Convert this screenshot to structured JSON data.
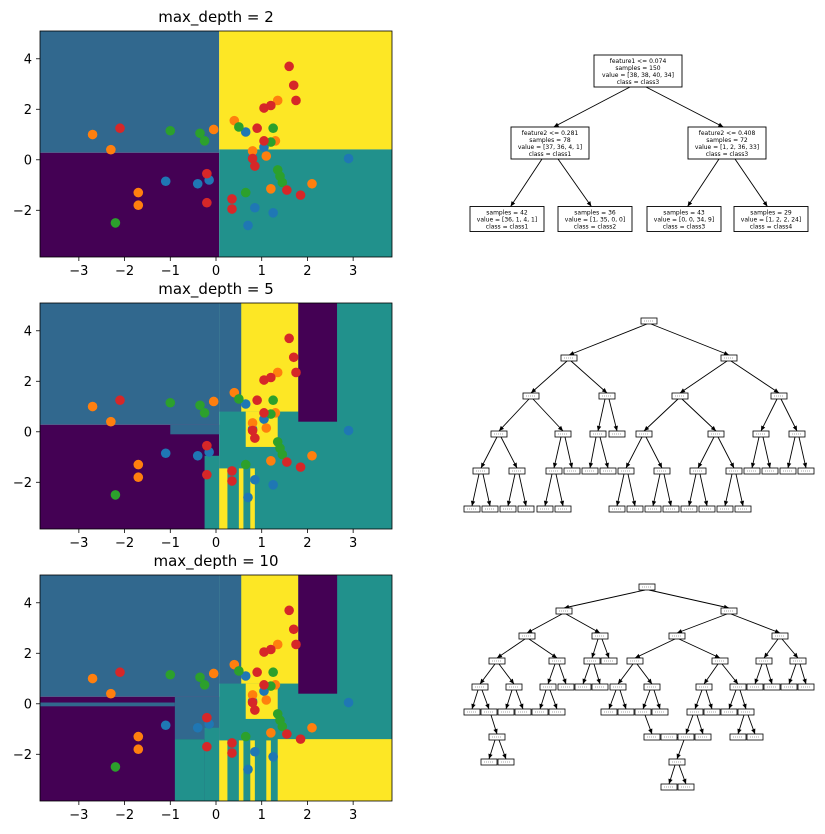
{
  "colors": {
    "region_class1": "#440154",
    "region_class2": "#31688e",
    "region_class3": "#21918c",
    "region_class4": "#fde725",
    "points": [
      "#1f77b4",
      "#ff7f0e",
      "#2ca02c",
      "#d62728"
    ]
  },
  "points": [
    {
      "x": 2.9,
      "y": 0.05,
      "c": 0
    },
    {
      "x": -1.1,
      "y": -0.85,
      "c": 0
    },
    {
      "x": -0.4,
      "y": -0.95,
      "c": 0
    },
    {
      "x": -0.15,
      "y": -0.8,
      "c": 0
    },
    {
      "x": 0.85,
      "y": -1.9,
      "c": 0
    },
    {
      "x": 0.7,
      "y": -2.6,
      "c": 0
    },
    {
      "x": 1.25,
      "y": -2.1,
      "c": 0
    },
    {
      "x": 0.65,
      "y": 1.1,
      "c": 0
    },
    {
      "x": 1.05,
      "y": 0.5,
      "c": 0
    },
    {
      "x": 0.8,
      "y": 0.1,
      "c": 0
    },
    {
      "x": -2.7,
      "y": 1.0,
      "c": 1
    },
    {
      "x": -2.3,
      "y": 0.4,
      "c": 1
    },
    {
      "x": -1.7,
      "y": -1.3,
      "c": 1
    },
    {
      "x": -1.7,
      "y": -1.8,
      "c": 1
    },
    {
      "x": -0.05,
      "y": 1.2,
      "c": 1
    },
    {
      "x": 0.4,
      "y": 1.55,
      "c": 1
    },
    {
      "x": 1.35,
      "y": 2.35,
      "c": 1
    },
    {
      "x": 1.3,
      "y": 0.75,
      "c": 1
    },
    {
      "x": 1.1,
      "y": 0.15,
      "c": 1
    },
    {
      "x": 1.2,
      "y": -1.15,
      "c": 1
    },
    {
      "x": 2.1,
      "y": -0.95,
      "c": 1
    },
    {
      "x": 0.8,
      "y": 0.35,
      "c": 1
    },
    {
      "x": -2.2,
      "y": -2.5,
      "c": 2
    },
    {
      "x": -1.0,
      "y": 1.15,
      "c": 2
    },
    {
      "x": -0.35,
      "y": 1.05,
      "c": 2
    },
    {
      "x": -0.25,
      "y": 0.75,
      "c": 2
    },
    {
      "x": 0.5,
      "y": 1.3,
      "c": 2
    },
    {
      "x": 0.65,
      "y": -1.3,
      "c": 2
    },
    {
      "x": 1.25,
      "y": 1.25,
      "c": 2
    },
    {
      "x": 1.35,
      "y": -0.4,
      "c": 2
    },
    {
      "x": 1.4,
      "y": -0.65,
      "c": 2
    },
    {
      "x": 1.45,
      "y": -0.9,
      "c": 2
    },
    {
      "x": 1.2,
      "y": 0.7,
      "c": 2
    },
    {
      "x": 1.6,
      "y": 3.7,
      "c": 3
    },
    {
      "x": 1.7,
      "y": 2.95,
      "c": 3
    },
    {
      "x": 1.75,
      "y": 2.35,
      "c": 3
    },
    {
      "x": 1.05,
      "y": 2.05,
      "c": 3
    },
    {
      "x": 1.2,
      "y": 2.15,
      "c": 3
    },
    {
      "x": -2.1,
      "y": 1.25,
      "c": 3
    },
    {
      "x": 0.9,
      "y": 1.25,
      "c": 3
    },
    {
      "x": 0.8,
      "y": 0.05,
      "c": 3
    },
    {
      "x": 0.85,
      "y": -0.25,
      "c": 3
    },
    {
      "x": 1.05,
      "y": 0.75,
      "c": 3
    },
    {
      "x": -0.2,
      "y": -0.55,
      "c": 3
    },
    {
      "x": -0.2,
      "y": -1.7,
      "c": 3
    },
    {
      "x": 0.35,
      "y": -1.55,
      "c": 3
    },
    {
      "x": 0.35,
      "y": -1.95,
      "c": 3
    },
    {
      "x": 1.55,
      "y": -1.2,
      "c": 3
    },
    {
      "x": 1.85,
      "y": -1.4,
      "c": 3
    }
  ],
  "xticks": [
    "−3",
    "−2",
    "−1",
    "0",
    "1",
    "2",
    "3"
  ],
  "yticks": [
    "4",
    "2",
    "0",
    "−2"
  ],
  "panels": [
    {
      "title": "max_depth = 2",
      "chart_data": {
        "type": "heatmap",
        "xlim": [
          -3.85,
          3.85
        ],
        "ylim": [
          -3.85,
          5.1
        ],
        "regions": [
          {
            "x0": -3.85,
            "x1": 0.07,
            "y0": 0.28,
            "y1": 5.1,
            "c": 1
          },
          {
            "x0": -3.85,
            "x1": 0.07,
            "y0": -3.85,
            "y1": 0.28,
            "c": 0
          },
          {
            "x0": 0.07,
            "x1": 3.85,
            "y0": 0.41,
            "y1": 5.1,
            "c": 3
          },
          {
            "x0": 0.07,
            "x1": 3.85,
            "y0": -3.85,
            "y1": 0.41,
            "c": 2
          }
        ]
      },
      "tree": {
        "root": {
          "lines": [
            "feature1 <= 0.074",
            "samples = 150",
            "value = [38, 38, 40, 34]",
            "class = class3"
          ],
          "left": {
            "lines": [
              "feature2 <= 0.281",
              "samples = 78",
              "value = [37, 36, 4, 1]",
              "class = class1"
            ],
            "left": {
              "lines": [
                "samples = 42",
                "value = [36, 1, 4, 1]",
                "class = class1"
              ]
            },
            "right": {
              "lines": [
                "samples = 36",
                "value = [1, 35, 0, 0]",
                "class = class2"
              ]
            }
          },
          "right": {
            "lines": [
              "feature2 <= 0.408",
              "samples = 72",
              "value = [1, 2, 36, 33]",
              "class = class3"
            ],
            "left": {
              "lines": [
                "samples = 43",
                "value = [0, 0, 34, 9]",
                "class = class3"
              ]
            },
            "right": {
              "lines": [
                "samples = 29",
                "value = [1, 2, 2, 24]",
                "class = class4"
              ]
            }
          }
        }
      }
    },
    {
      "title": "max_depth = 5",
      "chart_data": {
        "type": "heatmap",
        "xlim": [
          -3.85,
          3.85
        ],
        "ylim": [
          -3.85,
          5.1
        ],
        "regions": [
          {
            "x0": -3.85,
            "x1": 0.07,
            "y0": 0.28,
            "y1": 5.1,
            "c": 1
          },
          {
            "x0": -3.85,
            "x1": 0.07,
            "y0": -3.85,
            "y1": 0.28,
            "c": 0
          },
          {
            "x0": -1.0,
            "x1": 0.07,
            "y0": -0.1,
            "y1": 0.28,
            "c": 1
          },
          {
            "x0": -0.25,
            "x1": 0.07,
            "y0": -3.85,
            "y1": -0.95,
            "c": 2
          },
          {
            "x0": 0.07,
            "x1": 3.85,
            "y0": -3.85,
            "y1": 5.1,
            "c": 2
          },
          {
            "x0": 0.55,
            "x1": 1.8,
            "y0": 0.8,
            "y1": 5.1,
            "c": 3
          },
          {
            "x0": 0.65,
            "x1": 1.35,
            "y0": -0.6,
            "y1": 0.8,
            "c": 3
          },
          {
            "x0": 1.8,
            "x1": 2.65,
            "y0": 0.4,
            "y1": 5.1,
            "c": 0
          },
          {
            "x0": 2.65,
            "x1": 3.85,
            "y0": 0.4,
            "y1": 5.1,
            "c": 2
          },
          {
            "x0": 0.07,
            "x1": 0.55,
            "y0": 0.8,
            "y1": 5.1,
            "c": 1
          },
          {
            "x0": 0.07,
            "x1": 0.25,
            "y0": -3.85,
            "y1": -1.45,
            "c": 3
          },
          {
            "x0": 0.5,
            "x1": 0.6,
            "y0": -3.85,
            "y1": -1.45,
            "c": 3
          },
          {
            "x0": 0.75,
            "x1": 0.85,
            "y0": -3.85,
            "y1": -1.45,
            "c": 3
          }
        ]
      },
      "tree": {
        "levels": [
          1,
          2,
          4,
          7,
          12,
          12
        ],
        "depth": 5
      }
    },
    {
      "title": "max_depth = 10",
      "chart_data": {
        "type": "heatmap",
        "xlim": [
          -3.85,
          3.85
        ],
        "ylim": [
          -3.85,
          5.1
        ],
        "regions": [
          {
            "x0": -3.85,
            "x1": 0.07,
            "y0": 0.28,
            "y1": 5.1,
            "c": 1
          },
          {
            "x0": -3.85,
            "x1": 0.07,
            "y0": -3.85,
            "y1": 0.28,
            "c": 0
          },
          {
            "x0": -3.85,
            "x1": -0.9,
            "y0": -0.1,
            "y1": 0.05,
            "c": 1
          },
          {
            "x0": -0.9,
            "x1": 0.07,
            "y0": -1.4,
            "y1": 0.28,
            "c": 1
          },
          {
            "x0": -0.9,
            "x1": -0.25,
            "y0": -3.85,
            "y1": -1.4,
            "c": 2
          },
          {
            "x0": -0.25,
            "x1": 0.07,
            "y0": -3.85,
            "y1": -0.95,
            "c": 2
          },
          {
            "x0": 0.07,
            "x1": 3.85,
            "y0": -3.85,
            "y1": 5.1,
            "c": 2
          },
          {
            "x0": 0.55,
            "x1": 1.8,
            "y0": 0.8,
            "y1": 5.1,
            "c": 3
          },
          {
            "x0": 0.65,
            "x1": 1.35,
            "y0": -0.6,
            "y1": 0.8,
            "c": 3
          },
          {
            "x0": 1.35,
            "x1": 3.85,
            "y0": -3.85,
            "y1": -1.4,
            "c": 3
          },
          {
            "x0": 1.8,
            "x1": 2.65,
            "y0": 0.4,
            "y1": 5.1,
            "c": 0
          },
          {
            "x0": 0.07,
            "x1": 0.55,
            "y0": 0.8,
            "y1": 5.1,
            "c": 1
          },
          {
            "x0": 0.07,
            "x1": 0.25,
            "y0": -3.85,
            "y1": -1.45,
            "c": 3
          },
          {
            "x0": 0.5,
            "x1": 0.6,
            "y0": -3.85,
            "y1": -1.45,
            "c": 3
          },
          {
            "x0": 0.75,
            "x1": 0.85,
            "y0": -3.85,
            "y1": -1.45,
            "c": 3
          },
          {
            "x0": 1.1,
            "x1": 1.2,
            "y0": -3.85,
            "y1": -1.45,
            "c": 3
          }
        ]
      },
      "tree": {
        "depth": 10
      }
    }
  ]
}
